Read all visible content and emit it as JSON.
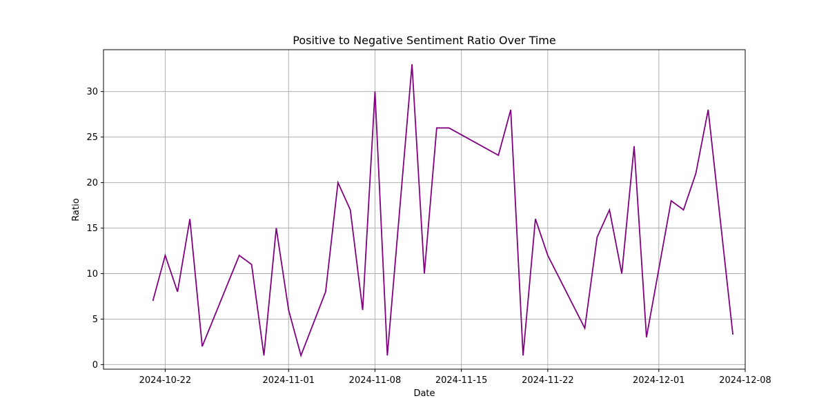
{
  "chart_data": {
    "type": "line",
    "title": "Positive to Negative Sentiment Ratio Over Time",
    "xlabel": "Date",
    "ylabel": "Ratio",
    "grid": true,
    "line_color": "#800080",
    "xlim": [
      "2024-10-17",
      "2024-12-08"
    ],
    "ylim": [
      -0.5,
      34.6
    ],
    "x_ticks": [
      "2024-10-22",
      "2024-11-01",
      "2024-11-08",
      "2024-11-15",
      "2024-11-22",
      "2024-12-01",
      "2024-12-08"
    ],
    "y_ticks": [
      0,
      5,
      10,
      15,
      20,
      25,
      30
    ],
    "series": [
      {
        "name": "",
        "points": [
          {
            "x": "2024-10-21",
            "y": 7
          },
          {
            "x": "2024-10-22",
            "y": 12
          },
          {
            "x": "2024-10-23",
            "y": 8
          },
          {
            "x": "2024-10-24",
            "y": 16
          },
          {
            "x": "2024-10-25",
            "y": 2
          },
          {
            "x": "2024-10-28",
            "y": 12
          },
          {
            "x": "2024-10-29",
            "y": 11
          },
          {
            "x": "2024-10-30",
            "y": 1
          },
          {
            "x": "2024-10-31",
            "y": 15
          },
          {
            "x": "2024-11-01",
            "y": 6
          },
          {
            "x": "2024-11-02",
            "y": 1
          },
          {
            "x": "2024-11-04",
            "y": 8
          },
          {
            "x": "2024-11-05",
            "y": 20
          },
          {
            "x": "2024-11-06",
            "y": 17
          },
          {
            "x": "2024-11-07",
            "y": 6
          },
          {
            "x": "2024-11-08",
            "y": 30
          },
          {
            "x": "2024-11-09",
            "y": 1
          },
          {
            "x": "2024-11-11",
            "y": 33
          },
          {
            "x": "2024-11-12",
            "y": 10
          },
          {
            "x": "2024-11-13",
            "y": 26
          },
          {
            "x": "2024-11-14",
            "y": 26
          },
          {
            "x": "2024-11-18",
            "y": 23
          },
          {
            "x": "2024-11-19",
            "y": 28
          },
          {
            "x": "2024-11-20",
            "y": 1
          },
          {
            "x": "2024-11-21",
            "y": 16
          },
          {
            "x": "2024-11-22",
            "y": 12
          },
          {
            "x": "2024-11-25",
            "y": 4
          },
          {
            "x": "2024-11-26",
            "y": 14
          },
          {
            "x": "2024-11-27",
            "y": 17
          },
          {
            "x": "2024-11-28",
            "y": 10
          },
          {
            "x": "2024-11-29",
            "y": 24
          },
          {
            "x": "2024-11-30",
            "y": 3
          },
          {
            "x": "2024-12-02",
            "y": 18
          },
          {
            "x": "2024-12-03",
            "y": 17
          },
          {
            "x": "2024-12-04",
            "y": 21
          },
          {
            "x": "2024-12-05",
            "y": 28
          },
          {
            "x": "2024-12-07",
            "y": 3.3
          }
        ]
      }
    ]
  }
}
